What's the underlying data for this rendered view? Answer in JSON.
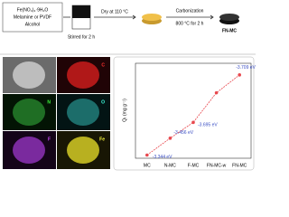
{
  "scheme": {
    "reagents": [
      "Fe(NO₃)₃·9H₂O",
      "Melamine or PVDF",
      "Alcohol"
    ],
    "stir": "Stirred for 2 h",
    "dry": "Dry at 110 °C",
    "carbonization": [
      "Carbonization",
      "800 °C for 2 h"
    ],
    "product": "FN-MC"
  },
  "maps": {
    "labels": [
      "C",
      "N",
      "O",
      "F",
      "Fe"
    ]
  },
  "chart_data": {
    "type": "line",
    "y_label": "Qₜ (mg g⁻¹)",
    "categories": [
      "MC",
      "N-MC",
      "F-MC",
      "FN-MC-w",
      "FN-MC"
    ],
    "values": [
      3,
      19,
      34,
      62,
      79
    ],
    "color": "#e8484e",
    "ylim": [
      0,
      90
    ],
    "annotations": [
      "-3.344 eV",
      "-3.456 eV",
      "-3.695 eV",
      "-3.709 eV"
    ]
  }
}
